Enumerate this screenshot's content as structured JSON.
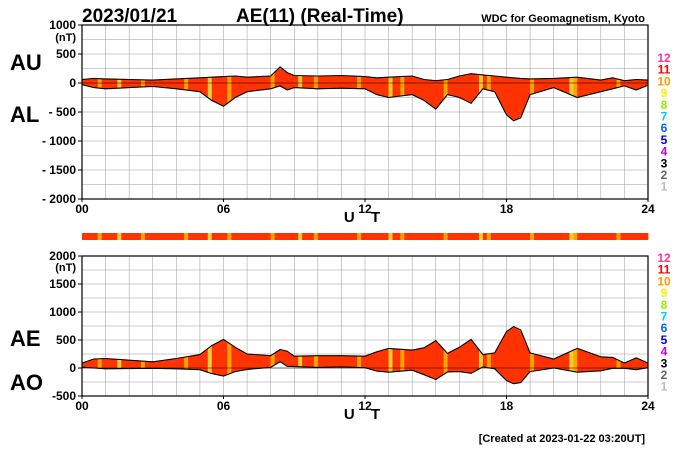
{
  "header": {
    "date": "2023/01/21",
    "title": "AE(11) (Real-Time)",
    "organization": "WDC for Geomagnetism, Kyoto"
  },
  "footer": {
    "created": "[Created at 2023-01-22 03:20UT]"
  },
  "colors": {
    "fill_main": "#ff3300",
    "fill_alt": "#ffa500",
    "fill_light": "#ffcc33",
    "strip": "#ff3300",
    "grid": "#999999"
  },
  "legend": [
    {
      "label": "12",
      "color": "#ff3399"
    },
    {
      "label": "11",
      "color": "#ff0000"
    },
    {
      "label": "10",
      "color": "#ff9900"
    },
    {
      "label": "9",
      "color": "#ffee00"
    },
    {
      "label": "8",
      "color": "#99ee00"
    },
    {
      "label": "7",
      "color": "#00ccff"
    },
    {
      "label": "6",
      "color": "#0066ff"
    },
    {
      "label": "5",
      "color": "#0000cc"
    },
    {
      "label": "4",
      "color": "#cc00cc"
    },
    {
      "label": "3",
      "color": "#000000"
    },
    {
      "label": "2",
      "color": "#666666"
    },
    {
      "label": "1",
      "color": "#bbbbbb"
    }
  ],
  "chart_data": [
    {
      "type": "area",
      "series": [
        {
          "name": "AU",
          "x": [
            0,
            0.5,
            1,
            2,
            3,
            4,
            5,
            5.5,
            6,
            6.5,
            7,
            8,
            8.4,
            8.7,
            9,
            10,
            11,
            12,
            12.5,
            13,
            14,
            14.5,
            15,
            15.5,
            16,
            16.5,
            17,
            17.5,
            18,
            18.3,
            18.6,
            19,
            20,
            21,
            22,
            22.5,
            23,
            23.5,
            24
          ],
          "values": [
            60,
            80,
            70,
            60,
            50,
            70,
            90,
            100,
            110,
            120,
            100,
            120,
            280,
            180,
            130,
            120,
            130,
            110,
            90,
            100,
            120,
            60,
            40,
            60,
            120,
            160,
            140,
            120,
            100,
            90,
            80,
            70,
            80,
            100,
            50,
            90,
            40,
            60,
            50
          ]
        },
        {
          "name": "AL",
          "x": [
            0,
            0.5,
            1,
            2,
            3,
            4,
            5,
            5.5,
            6,
            6.5,
            7,
            8,
            8.4,
            8.7,
            9,
            10,
            11,
            12,
            12.5,
            13,
            14,
            14.5,
            15,
            15.5,
            16,
            16.5,
            17,
            17.5,
            18,
            18.3,
            18.6,
            19,
            20,
            21,
            22,
            22.5,
            23,
            23.5,
            24
          ],
          "values": [
            -30,
            -80,
            -100,
            -80,
            -60,
            -100,
            -150,
            -300,
            -400,
            -250,
            -150,
            -100,
            -50,
            -120,
            -80,
            -100,
            -90,
            -100,
            -200,
            -250,
            -200,
            -300,
            -450,
            -200,
            -250,
            -350,
            -100,
            -150,
            -550,
            -650,
            -600,
            -200,
            -80,
            -250,
            -150,
            -100,
            -50,
            -120,
            -40
          ]
        }
      ],
      "xlabel": "U T",
      "ylabel_top": "AU",
      "ylabel_bottom": "AL",
      "unit": "(nT)",
      "xlim": [
        0,
        24
      ],
      "ylim": [
        -2000,
        1000
      ],
      "xticks": [
        "00",
        "06",
        "12",
        "18",
        "24"
      ],
      "yticks": [
        "1000",
        "500",
        "0",
        "- 500",
        "- 1000",
        "- 1500",
        "- 2000"
      ]
    },
    {
      "type": "area",
      "series": [
        {
          "name": "AE",
          "x": [
            0,
            0.5,
            1,
            2,
            3,
            4,
            5,
            5.5,
            6,
            6.5,
            7,
            8,
            8.4,
            8.7,
            9,
            10,
            11,
            12,
            12.5,
            13,
            14,
            14.5,
            15,
            15.5,
            16,
            16.5,
            17,
            17.5,
            18,
            18.3,
            18.6,
            19,
            20,
            21,
            22,
            22.5,
            23,
            23.5,
            24
          ],
          "values": [
            90,
            160,
            170,
            140,
            110,
            170,
            240,
            400,
            510,
            370,
            250,
            220,
            330,
            300,
            210,
            220,
            220,
            210,
            290,
            350,
            320,
            360,
            490,
            260,
            370,
            510,
            240,
            270,
            650,
            740,
            680,
            270,
            160,
            350,
            200,
            190,
            90,
            180,
            90
          ]
        },
        {
          "name": "AO",
          "x": [
            0,
            0.5,
            1,
            2,
            3,
            4,
            5,
            5.5,
            6,
            6.5,
            7,
            8,
            8.4,
            8.7,
            9,
            10,
            11,
            12,
            12.5,
            13,
            14,
            14.5,
            15,
            15.5,
            16,
            16.5,
            17,
            17.5,
            18,
            18.3,
            18.6,
            19,
            20,
            21,
            22,
            22.5,
            23,
            23.5,
            24
          ],
          "values": [
            15,
            0,
            -15,
            -10,
            -5,
            -15,
            -30,
            -100,
            -145,
            -65,
            -25,
            10,
            115,
            30,
            25,
            10,
            20,
            5,
            -55,
            -75,
            -40,
            -120,
            -205,
            -70,
            -65,
            -95,
            20,
            -15,
            -225,
            -280,
            -260,
            -65,
            0,
            -75,
            -50,
            -5,
            -5,
            -30,
            5
          ]
        }
      ],
      "xlabel": "U T",
      "ylabel_top": "AE",
      "ylabel_bottom": "AO",
      "unit": "(nT)",
      "xlim": [
        0,
        24
      ],
      "ylim": [
        -500,
        2000
      ],
      "xticks": [
        "00",
        "06",
        "12",
        "18",
        "24"
      ],
      "yticks": [
        "2000",
        "1500",
        "1000",
        "500",
        "0",
        "-500"
      ]
    }
  ]
}
